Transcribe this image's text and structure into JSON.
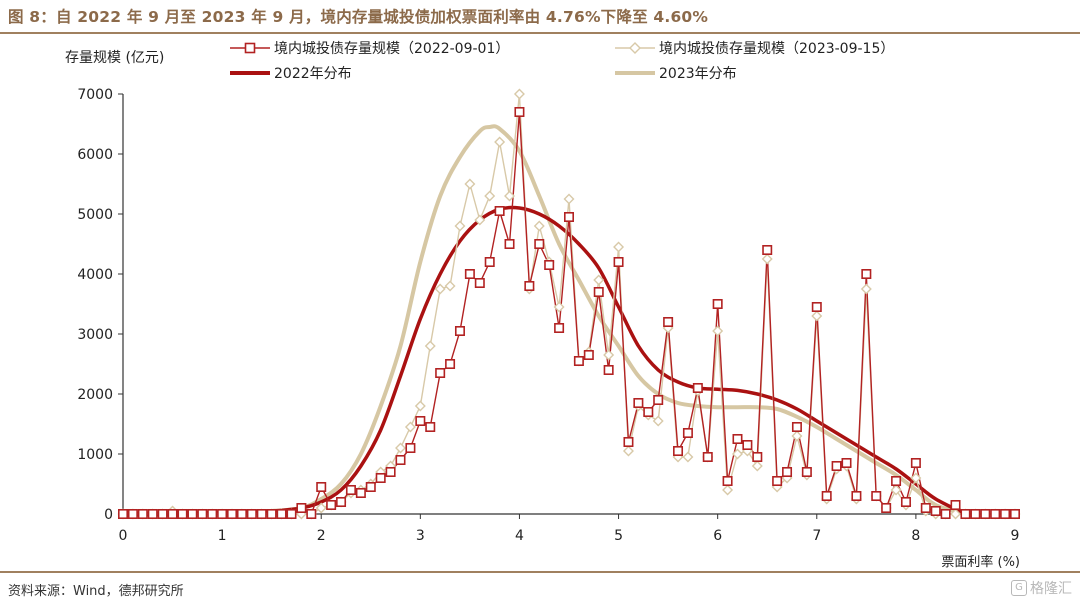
{
  "title": "图 8：自 2022 年 9 月至 2023 年 9 月，境内存量城投债加权票面利率由 4.76%下降至 4.60%",
  "source": "资料来源：Wind，德邦研究所",
  "watermark": "格隆汇",
  "chart_data": {
    "type": "line",
    "ylabel": "存量规模 (亿元)",
    "xlabel": "票面利率 (%)",
    "xlim": [
      0,
      9
    ],
    "ylim": [
      0,
      7000
    ],
    "xticks": [
      0,
      1,
      2,
      3,
      4,
      5,
      6,
      7,
      8,
      9
    ],
    "yticks": [
      0,
      1000,
      2000,
      3000,
      4000,
      5000,
      6000,
      7000
    ],
    "grid": false,
    "legend_placement": "top",
    "colors": {
      "series_2022": "#b22222",
      "series_2023": "#d8c9a8",
      "dist_2022": "#aa1111",
      "dist_2023": "#d6c7a3",
      "axis": "#333333",
      "rule": "#a0805f"
    },
    "series": [
      {
        "name": "境内城投债存量规模（2022-09-01）",
        "kind": "markers-square",
        "x": [
          0.0,
          0.1,
          0.2,
          0.3,
          0.4,
          0.5,
          0.6,
          0.7,
          0.8,
          0.9,
          1.0,
          1.1,
          1.2,
          1.3,
          1.4,
          1.5,
          1.6,
          1.7,
          1.8,
          1.9,
          2.0,
          2.1,
          2.2,
          2.3,
          2.4,
          2.5,
          2.6,
          2.7,
          2.8,
          2.9,
          3.0,
          3.1,
          3.2,
          3.3,
          3.4,
          3.5,
          3.6,
          3.7,
          3.8,
          3.9,
          4.0,
          4.1,
          4.2,
          4.3,
          4.4,
          4.5,
          4.6,
          4.7,
          4.8,
          4.9,
          5.0,
          5.1,
          5.2,
          5.3,
          5.4,
          5.5,
          5.6,
          5.7,
          5.8,
          5.9,
          6.0,
          6.1,
          6.2,
          6.3,
          6.4,
          6.5,
          6.6,
          6.7,
          6.8,
          6.9,
          7.0,
          7.1,
          7.2,
          7.3,
          7.4,
          7.5,
          7.6,
          7.7,
          7.8,
          7.9,
          8.0,
          8.1,
          8.2,
          8.3,
          8.4,
          8.5,
          8.6,
          8.7,
          8.8,
          8.9,
          9.0
        ],
        "y": [
          0,
          0,
          0,
          0,
          0,
          0,
          0,
          0,
          0,
          0,
          0,
          0,
          0,
          0,
          0,
          0,
          0,
          0,
          100,
          0,
          450,
          150,
          200,
          400,
          350,
          450,
          600,
          700,
          900,
          1100,
          1550,
          1450,
          2350,
          2500,
          3050,
          4000,
          3850,
          4200,
          5050,
          4500,
          6700,
          3800,
          4500,
          4150,
          3100,
          4950,
          2550,
          2650,
          3700,
          2400,
          4200,
          1200,
          1850,
          1700,
          1900,
          3200,
          1050,
          1350,
          2100,
          950,
          3500,
          550,
          1250,
          1150,
          950,
          4400,
          550,
          700,
          1450,
          700,
          3450,
          300,
          800,
          850,
          300,
          4000,
          300,
          100,
          550,
          200,
          850,
          100,
          50,
          0,
          150,
          0,
          0,
          0,
          0,
          0,
          0
        ]
      },
      {
        "name": "境内城投债存量规模（2023-09-15）",
        "kind": "markers-diamond",
        "x": [
          0.0,
          0.1,
          0.2,
          0.3,
          0.4,
          0.5,
          0.6,
          0.7,
          0.8,
          0.9,
          1.0,
          1.1,
          1.2,
          1.3,
          1.4,
          1.5,
          1.6,
          1.7,
          1.8,
          1.9,
          2.0,
          2.1,
          2.2,
          2.3,
          2.4,
          2.5,
          2.6,
          2.7,
          2.8,
          2.9,
          3.0,
          3.1,
          3.2,
          3.3,
          3.4,
          3.5,
          3.6,
          3.7,
          3.8,
          3.9,
          4.0,
          4.1,
          4.2,
          4.3,
          4.4,
          4.5,
          4.6,
          4.7,
          4.8,
          4.9,
          5.0,
          5.1,
          5.2,
          5.3,
          5.4,
          5.5,
          5.6,
          5.7,
          5.8,
          5.9,
          6.0,
          6.1,
          6.2,
          6.3,
          6.4,
          6.5,
          6.6,
          6.7,
          6.8,
          6.9,
          7.0,
          7.1,
          7.2,
          7.3,
          7.4,
          7.5,
          7.6,
          7.7,
          7.8,
          7.9,
          8.0,
          8.1,
          8.2,
          8.3,
          8.4,
          8.5,
          8.6,
          8.7,
          8.8,
          8.9,
          9.0
        ],
        "y": [
          0,
          0,
          0,
          0,
          0,
          50,
          0,
          0,
          0,
          0,
          0,
          0,
          0,
          0,
          0,
          0,
          0,
          0,
          0,
          0,
          100,
          150,
          200,
          350,
          400,
          500,
          700,
          800,
          1100,
          1450,
          1800,
          2800,
          3750,
          3800,
          4800,
          5500,
          4900,
          5300,
          6200,
          5300,
          7000,
          3750,
          4800,
          4200,
          3450,
          5250,
          2550,
          2700,
          3900,
          2650,
          4450,
          1050,
          1800,
          1650,
          1550,
          3100,
          950,
          950,
          2050,
          950,
          3050,
          400,
          1000,
          1050,
          800,
          4250,
          450,
          600,
          1300,
          650,
          3300,
          250,
          750,
          800,
          250,
          3750,
          300,
          100,
          400,
          150,
          600,
          50,
          0,
          0,
          0,
          0,
          0,
          0,
          0,
          0,
          0
        ]
      },
      {
        "name": "2022年分布",
        "kind": "smooth",
        "x": [
          0,
          0.5,
          1.0,
          1.5,
          1.8,
          2.0,
          2.2,
          2.4,
          2.6,
          2.8,
          3.0,
          3.2,
          3.4,
          3.6,
          3.8,
          4.0,
          4.2,
          4.4,
          4.6,
          4.8,
          5.0,
          5.2,
          5.4,
          5.6,
          5.8,
          6.0,
          6.2,
          6.4,
          6.6,
          6.8,
          7.0,
          7.2,
          7.4,
          7.6,
          7.8,
          8.0,
          8.2,
          8.5
        ],
        "y": [
          0,
          0,
          30,
          50,
          100,
          200,
          400,
          800,
          1400,
          2300,
          3250,
          4000,
          4550,
          4900,
          5080,
          5100,
          5000,
          4800,
          4500,
          4100,
          3450,
          2800,
          2400,
          2200,
          2100,
          2080,
          2060,
          2000,
          1900,
          1750,
          1550,
          1350,
          1150,
          950,
          750,
          500,
          250,
          0
        ]
      },
      {
        "name": "2023年分布",
        "kind": "smooth",
        "x": [
          0,
          0.5,
          1.0,
          1.5,
          1.8,
          2.0,
          2.2,
          2.4,
          2.6,
          2.8,
          3.0,
          3.2,
          3.4,
          3.6,
          3.7,
          3.8,
          4.0,
          4.2,
          4.4,
          4.6,
          4.8,
          5.0,
          5.2,
          5.4,
          5.6,
          5.8,
          6.0,
          6.2,
          6.4,
          6.6,
          6.8,
          7.0,
          7.2,
          7.4,
          7.6,
          7.8,
          8.0,
          8.2,
          8.5
        ],
        "y": [
          0,
          0,
          20,
          50,
          100,
          250,
          500,
          1000,
          1800,
          2800,
          4200,
          5300,
          5950,
          6380,
          6450,
          6420,
          6050,
          5300,
          4500,
          3900,
          3300,
          2800,
          2300,
          2000,
          1850,
          1800,
          1780,
          1780,
          1780,
          1750,
          1620,
          1450,
          1250,
          1050,
          850,
          650,
          400,
          150,
          0
        ]
      }
    ]
  }
}
